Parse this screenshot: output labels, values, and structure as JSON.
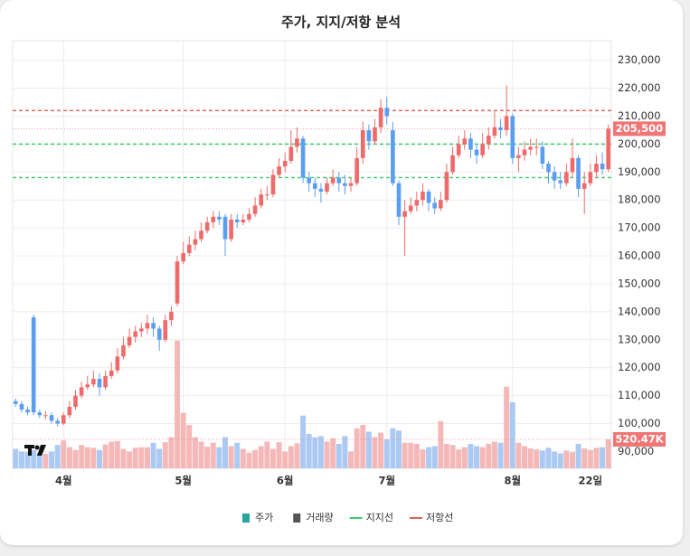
{
  "chart_data": {
    "type": "candlestick",
    "title": "주가, 지지/저항 분석",
    "categories": [
      null,
      null,
      null,
      null,
      null,
      null,
      null,
      null,
      "4월",
      null,
      null,
      null,
      null,
      null,
      null,
      null,
      null,
      null,
      null,
      null,
      null,
      null,
      null,
      null,
      null,
      null,
      null,
      null,
      "5월",
      null,
      null,
      null,
      null,
      null,
      null,
      null,
      null,
      null,
      null,
      null,
      null,
      null,
      null,
      null,
      null,
      "6월",
      null,
      null,
      null,
      null,
      null,
      null,
      null,
      null,
      null,
      null,
      null,
      null,
      null,
      null,
      null,
      null,
      "7월",
      null,
      null,
      null,
      null,
      null,
      null,
      null,
      null,
      null,
      null,
      null,
      null,
      null,
      null,
      null,
      null,
      null,
      null,
      null,
      null,
      "8월",
      null,
      null,
      null,
      null,
      null,
      null,
      null,
      null,
      null,
      null,
      null,
      null,
      "22일",
      null,
      null,
      null
    ],
    "series": [
      {
        "name": "주가",
        "color": "#26a69a",
        "up_color": "#ef6b6b",
        "down_color": "#5b9ef0",
        "ohlc": [
          [
            108000,
            109000,
            106000,
            107000
          ],
          [
            107000,
            108000,
            104000,
            105000
          ],
          [
            105000,
            106000,
            103000,
            104000
          ],
          [
            138000,
            139000,
            103000,
            104000
          ],
          [
            104000,
            105000,
            102000,
            103000
          ],
          [
            103000,
            104500,
            101500,
            103000
          ],
          [
            103000,
            104000,
            100000,
            101000
          ],
          [
            101000,
            102000,
            99000,
            100000
          ],
          [
            100000,
            104000,
            99500,
            103000
          ],
          [
            103000,
            108000,
            102000,
            106000
          ],
          [
            106000,
            112000,
            105000,
            110000
          ],
          [
            110000,
            115000,
            109000,
            113000
          ],
          [
            113000,
            117000,
            112000,
            114000
          ],
          [
            114000,
            119000,
            113000,
            116000
          ],
          [
            116000,
            118000,
            110000,
            113000
          ],
          [
            113000,
            119000,
            112000,
            117000
          ],
          [
            117000,
            122000,
            116000,
            119000
          ],
          [
            119000,
            127000,
            118000,
            124000
          ],
          [
            124000,
            131000,
            123000,
            128000
          ],
          [
            128000,
            134000,
            127000,
            131000
          ],
          [
            131000,
            135000,
            129000,
            133000
          ],
          [
            133000,
            136000,
            131000,
            134000
          ],
          [
            134000,
            139000,
            132000,
            136000
          ],
          [
            136000,
            138000,
            131000,
            134000
          ],
          [
            134000,
            135000,
            126000,
            130000
          ],
          [
            130000,
            139000,
            129000,
            137000
          ],
          [
            137000,
            142000,
            135000,
            140000
          ],
          [
            143000,
            160000,
            142000,
            158000
          ],
          [
            158000,
            165000,
            157000,
            161000
          ],
          [
            161000,
            167000,
            160000,
            164000
          ],
          [
            164000,
            169000,
            162000,
            166000
          ],
          [
            166000,
            172000,
            165000,
            169000
          ],
          [
            169000,
            174000,
            168000,
            172000
          ],
          [
            172000,
            176000,
            170000,
            174000
          ],
          [
            174000,
            176000,
            171000,
            173000
          ],
          [
            174000,
            175000,
            160000,
            166000
          ],
          [
            166000,
            175000,
            165000,
            173000
          ],
          [
            173000,
            175000,
            170000,
            172000
          ],
          [
            172000,
            175000,
            171000,
            173000
          ],
          [
            173000,
            177000,
            172000,
            175000
          ],
          [
            175000,
            181000,
            174000,
            178000
          ],
          [
            178000,
            184000,
            177000,
            182000
          ],
          [
            182000,
            185000,
            180000,
            182000
          ],
          [
            182000,
            191000,
            181000,
            189000
          ],
          [
            189000,
            195000,
            188000,
            192000
          ],
          [
            192000,
            197000,
            190000,
            194000
          ],
          [
            194000,
            205000,
            193000,
            199000
          ],
          [
            199000,
            206000,
            197000,
            202000
          ],
          [
            202000,
            203000,
            186000,
            188000
          ],
          [
            188000,
            190000,
            183000,
            186000
          ],
          [
            186000,
            188000,
            181000,
            184000
          ],
          [
            184000,
            186000,
            179000,
            183000
          ],
          [
            183000,
            188000,
            182000,
            186000
          ],
          [
            186000,
            191000,
            185000,
            188000
          ],
          [
            188000,
            190000,
            183000,
            186000
          ],
          [
            186000,
            189000,
            182000,
            185000
          ],
          [
            185000,
            188000,
            183000,
            186000
          ],
          [
            186000,
            199000,
            185000,
            195000
          ],
          [
            195000,
            208000,
            193000,
            205000
          ],
          [
            205000,
            207000,
            198000,
            201000
          ],
          [
            201000,
            209000,
            200000,
            206000
          ],
          [
            206000,
            216000,
            204000,
            213000
          ],
          [
            213000,
            217000,
            207000,
            210000
          ],
          [
            205000,
            208000,
            185000,
            186000
          ],
          [
            186000,
            187000,
            171000,
            174000
          ],
          [
            174000,
            180000,
            160000,
            176000
          ],
          [
            176000,
            181000,
            175000,
            178000
          ],
          [
            178000,
            183000,
            176000,
            180000
          ],
          [
            180000,
            186000,
            178000,
            183000
          ],
          [
            183000,
            184000,
            176000,
            179000
          ],
          [
            179000,
            181000,
            175000,
            177000
          ],
          [
            177000,
            183000,
            176000,
            180000
          ],
          [
            180000,
            193000,
            179000,
            190000
          ],
          [
            190000,
            199000,
            189000,
            196000
          ],
          [
            196000,
            203000,
            195000,
            200000
          ],
          [
            200000,
            205000,
            198000,
            202000
          ],
          [
            202000,
            204000,
            195000,
            198000
          ],
          [
            198000,
            200000,
            193000,
            196000
          ],
          [
            196000,
            204000,
            195000,
            200000
          ],
          [
            200000,
            206000,
            198000,
            203000
          ],
          [
            203000,
            212000,
            202000,
            206000
          ],
          [
            206000,
            209000,
            202000,
            205000
          ],
          [
            205000,
            221000,
            203000,
            210000
          ],
          [
            210000,
            211000,
            193000,
            195000
          ],
          [
            195000,
            199000,
            190000,
            196000
          ],
          [
            196000,
            201000,
            194000,
            198000
          ],
          [
            198000,
            202000,
            196000,
            199000
          ],
          [
            199000,
            202000,
            196000,
            199000
          ],
          [
            199000,
            201000,
            191000,
            193000
          ],
          [
            193000,
            194000,
            186000,
            190000
          ],
          [
            190000,
            192000,
            184000,
            187000
          ],
          [
            187000,
            190000,
            184000,
            186000
          ],
          [
            186000,
            193000,
            185000,
            190000
          ],
          [
            190000,
            202000,
            188000,
            195000
          ],
          [
            195000,
            196000,
            181000,
            184000
          ],
          [
            184000,
            190000,
            175000,
            186000
          ],
          [
            186000,
            193000,
            185000,
            190000
          ],
          [
            190000,
            196000,
            188000,
            193000
          ],
          [
            193000,
            197000,
            189000,
            191000
          ],
          [
            191000,
            207000,
            190000,
            205500
          ]
        ]
      },
      {
        "name": "거래량",
        "color": "#555555",
        "up_color": "#f5b8b8",
        "down_color": "#aac9f3",
        "values": [
          350000,
          300000,
          290000,
          330000,
          280000,
          260000,
          300000,
          420000,
          500000,
          380000,
          330000,
          420000,
          380000,
          370000,
          330000,
          430000,
          480000,
          490000,
          350000,
          300000,
          370000,
          380000,
          380000,
          460000,
          350000,
          470000,
          560000,
          2300000,
          1000000,
          780000,
          560000,
          480000,
          390000,
          460000,
          380000,
          560000,
          400000,
          460000,
          350000,
          280000,
          330000,
          400000,
          480000,
          350000,
          470000,
          300000,
          400000,
          450000,
          950000,
          620000,
          560000,
          580000,
          480000,
          540000,
          440000,
          580000,
          300000,
          720000,
          780000,
          660000,
          560000,
          640000,
          520000,
          720000,
          680000,
          460000,
          460000,
          440000,
          340000,
          380000,
          400000,
          850000,
          440000,
          420000,
          340000,
          380000,
          440000,
          400000,
          380000,
          440000,
          480000,
          460000,
          1470000,
          1190000,
          460000,
          400000,
          360000,
          340000,
          320000,
          370000,
          300000,
          270000,
          320000,
          290000,
          440000,
          360000,
          330000,
          370000,
          380000,
          520470
        ]
      }
    ],
    "levels": [
      {
        "name": "지지선",
        "color": "#3dcc6e",
        "values": [
          188000,
          200000
        ]
      },
      {
        "name": "저항선",
        "color": "#e0605a",
        "values": [
          212000
        ]
      }
    ],
    "price_label": {
      "value": 205500,
      "label": "205,500"
    },
    "volume_label": {
      "value": 520470,
      "label": "520.47K"
    },
    "ylim": [
      84000,
      237000
    ],
    "volume_lim": [
      0,
      7700000
    ],
    "yticks": [
      {
        "value": 90000,
        "label": "90,000"
      },
      {
        "value": 100000,
        "label": "100,000"
      },
      {
        "value": 110000,
        "label": "110,000"
      },
      {
        "value": 120000,
        "label": "120,000"
      },
      {
        "value": 130000,
        "label": "130,000"
      },
      {
        "value": 140000,
        "label": "140,000"
      },
      {
        "value": 150000,
        "label": "150,000"
      },
      {
        "value": 160000,
        "label": "160,000"
      },
      {
        "value": 170000,
        "label": "170,000"
      },
      {
        "value": 180000,
        "label": "180,000"
      },
      {
        "value": 190000,
        "label": "190,000"
      },
      {
        "value": 200000,
        "label": "200,000"
      },
      {
        "value": 210000,
        "label": "210,000"
      },
      {
        "value": 220000,
        "label": "220,000"
      },
      {
        "value": 230000,
        "label": "230,000"
      }
    ],
    "grid": true
  }
}
